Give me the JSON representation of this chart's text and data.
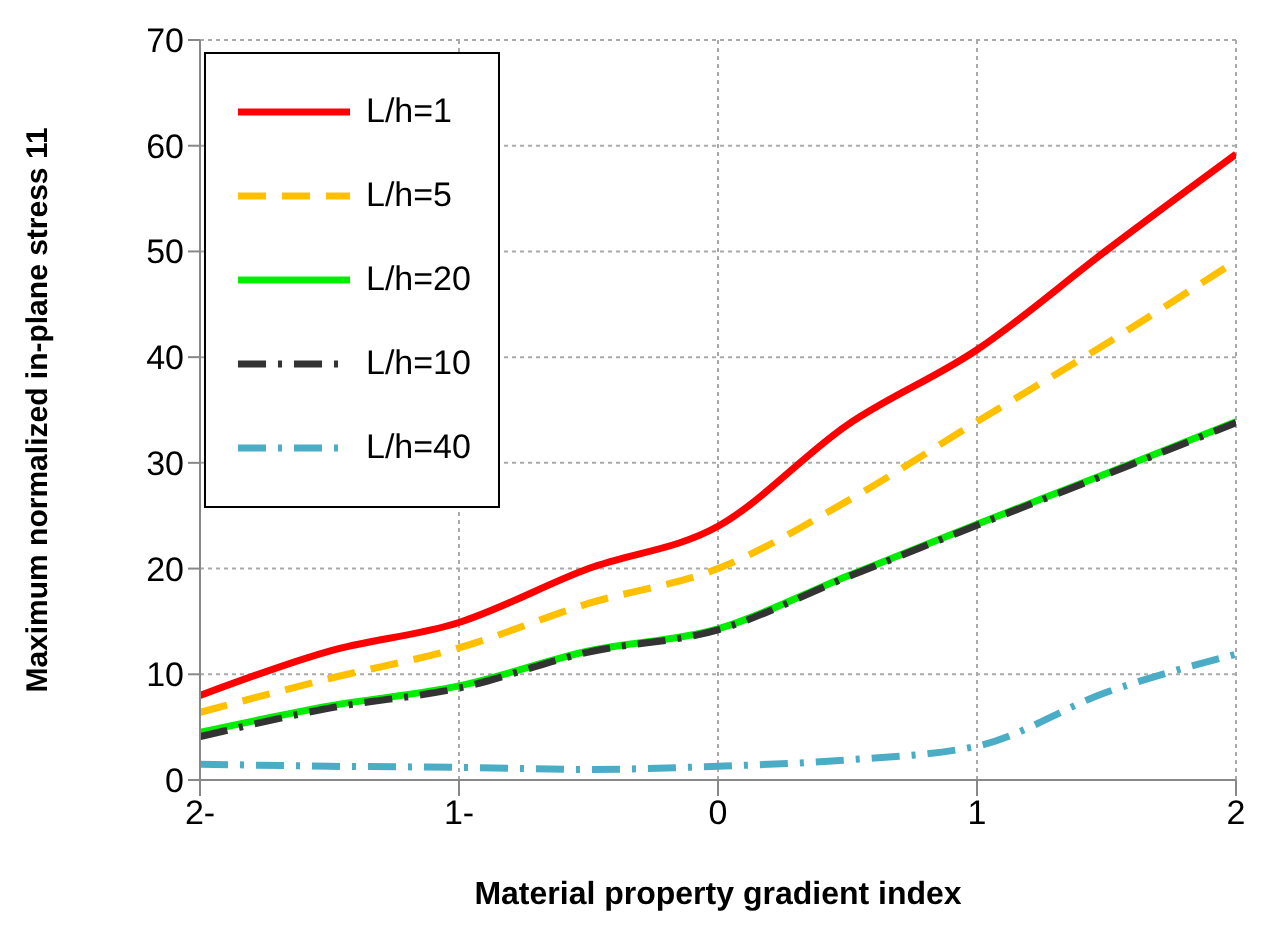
{
  "chart_data": {
    "type": "line",
    "xlabel": "Material property gradient index",
    "ylabel": "Maximum normalized in-plane stress 11",
    "x": [
      -2,
      -1.5,
      -1,
      -0.5,
      0,
      0.5,
      1,
      1.5,
      2
    ],
    "xlim": [
      -2,
      2
    ],
    "xticks": [
      {
        "value": -2,
        "label": "2-"
      },
      {
        "value": -1,
        "label": "1-"
      },
      0,
      1,
      2
    ],
    "ylim": [
      0,
      70
    ],
    "yticks": [
      0,
      10,
      20,
      30,
      40,
      50,
      60,
      70
    ],
    "grid": true,
    "legend": "top left",
    "series": [
      {
        "name": "L/h=1",
        "color": "#ff0000",
        "line_style": "solid",
        "values": [
          8.0,
          12.2,
          14.9,
          20.0,
          24.0,
          33.6,
          40.7,
          50.1,
          59.2
        ]
      },
      {
        "name": "L/h=5",
        "color": "#ffc000",
        "line_style": "dashed",
        "values": [
          6.4,
          9.6,
          12.5,
          16.7,
          20.0,
          26.4,
          33.9,
          41.3,
          49.1
        ]
      },
      {
        "name": "L/h=20",
        "color": "#00ee00",
        "line_style": "solid",
        "values": [
          4.5,
          7.0,
          8.9,
          12.2,
          14.3,
          19.3,
          24.2,
          29.0,
          33.9
        ]
      },
      {
        "name": "L/h=10",
        "color": "#333333",
        "line_style": "dashdot",
        "values": [
          4.1,
          6.8,
          8.7,
          12.1,
          14.2,
          19.2,
          24.1,
          28.9,
          33.8
        ]
      },
      {
        "name": "L/h=40",
        "color": "#4bacc6",
        "line_style": "dashdot",
        "values": [
          1.5,
          1.3,
          1.2,
          1.0,
          1.3,
          1.9,
          3.2,
          8.3,
          11.9
        ]
      }
    ]
  }
}
